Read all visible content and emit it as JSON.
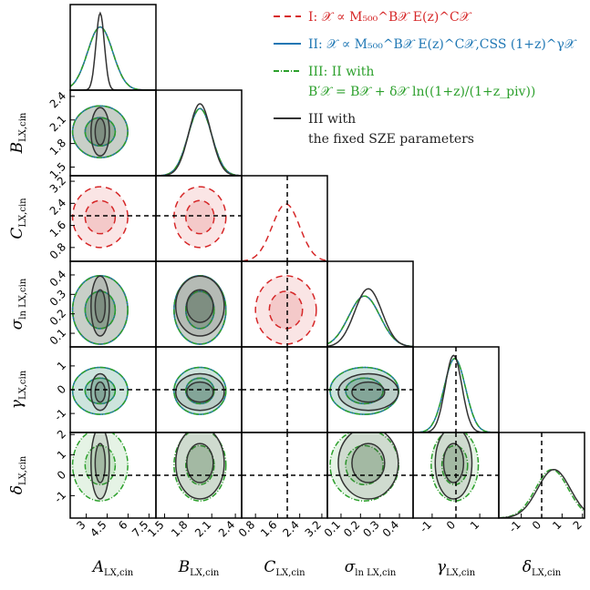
{
  "chart_data": {
    "type": "corner",
    "parameters": [
      {
        "label": "A",
        "sub": "LX,cin",
        "lim": [
          1.85,
          8.0
        ],
        "ticks": [
          3.0,
          4.5,
          6.0,
          7.5
        ],
        "truth": null
      },
      {
        "label": "B",
        "sub": "LX,cin",
        "lim": [
          1.39,
          2.48
        ],
        "ticks": [
          1.5,
          1.8,
          2.1,
          2.4
        ],
        "truth": null
      },
      {
        "label": "C",
        "sub": "LX,cin",
        "lim": [
          0.3,
          3.4
        ],
        "ticks": [
          0.8,
          1.6,
          2.4,
          3.2
        ],
        "truth": 1.95
      },
      {
        "label": "σ",
        "sub": "ln LX,cin",
        "lim": [
          0.03,
          0.47
        ],
        "ticks": [
          0.1,
          0.2,
          0.3,
          0.4
        ],
        "truth": null
      },
      {
        "label": "γ",
        "sub": "LX,cin",
        "lim": [
          -1.8,
          1.8
        ],
        "ticks": [
          -1,
          0,
          1
        ],
        "truth": 0
      },
      {
        "label": "δ",
        "sub": "LX,cin",
        "lim": [
          -2.1,
          2.1
        ],
        "ticks": [
          -1,
          0,
          1,
          2
        ],
        "truth": 0
      }
    ],
    "series": [
      {
        "name": "I: 𝒳 ∝ M₅₀₀^B𝒳 E(z)^C𝒳",
        "note": null,
        "color": "#d62728",
        "dash": "7,5",
        "means": [
          4.0,
          1.95,
          1.9,
          0.22,
          null,
          null
        ],
        "sigmas": [
          0.9,
          0.15,
          0.5,
          0.08,
          null,
          null
        ]
      },
      {
        "name": "II: 𝒳 ∝ M₅₀₀^B𝒳 E(z)^C𝒳,CSS (1+z)^γ𝒳",
        "note": null,
        "color": "#1f77b4",
        "dash": "",
        "means": [
          4.0,
          1.95,
          null,
          0.22,
          -0.05,
          null
        ],
        "sigmas": [
          0.9,
          0.15,
          null,
          0.08,
          0.45,
          null
        ]
      },
      {
        "name": "III: II with",
        "note": "B′𝒳 = B𝒳 + δ𝒳 ln((1+z)/(1+z_piv))",
        "color": "#2ca02c",
        "dash": "6,2,1,2",
        "means": [
          4.0,
          1.95,
          null,
          0.22,
          -0.05,
          0.5
        ],
        "sigmas": [
          0.9,
          0.15,
          null,
          0.08,
          0.45,
          0.8
        ]
      },
      {
        "name": "III with",
        "note": "the fixed SZE parameters",
        "color": "#333333",
        "dash": "",
        "means": [
          4.0,
          1.95,
          null,
          0.24,
          -0.1,
          0.6
        ],
        "sigmas": [
          0.3,
          0.14,
          null,
          0.07,
          0.35,
          0.8
        ]
      }
    ]
  }
}
